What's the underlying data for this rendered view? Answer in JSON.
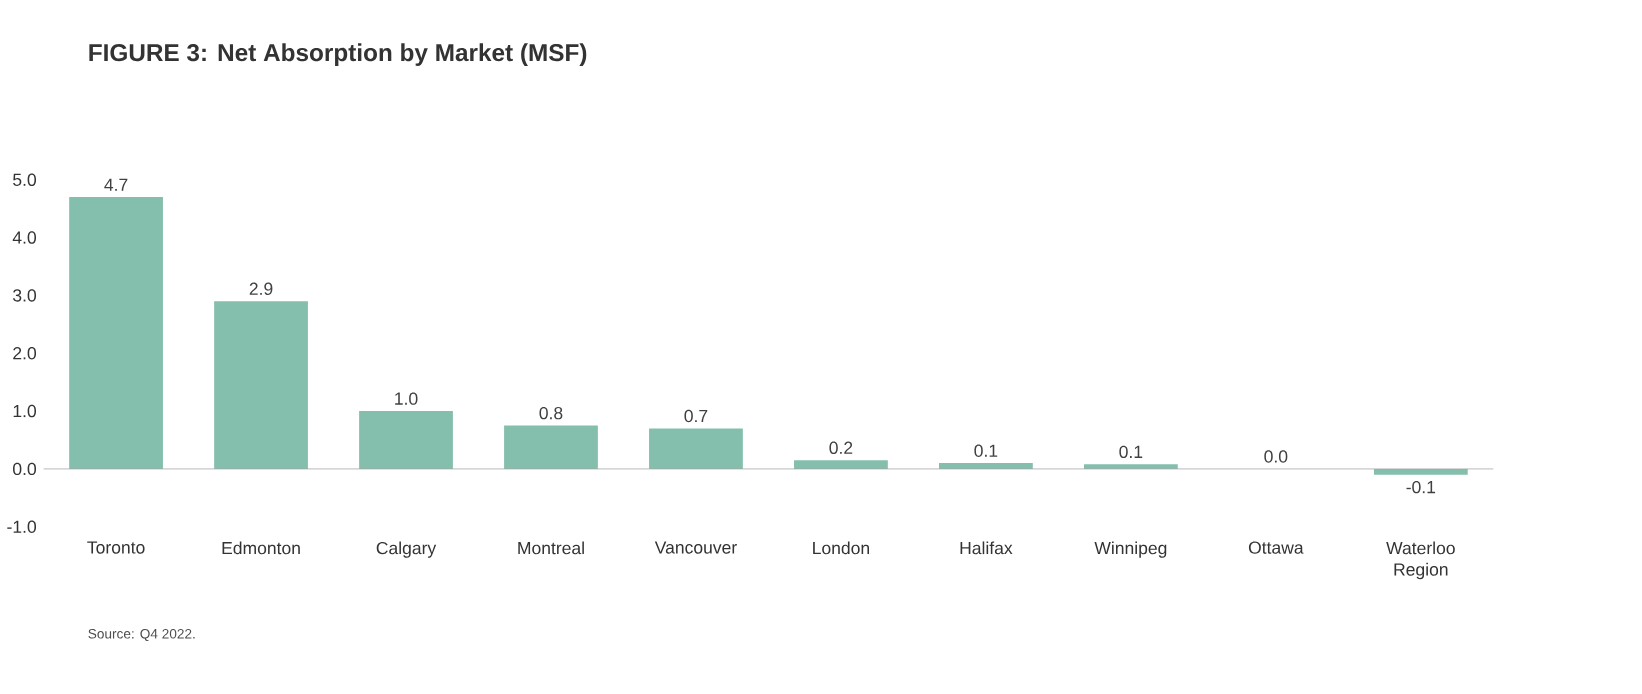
{
  "chart_data": {
    "type": "bar",
    "title": "FIGURE 3: Net Absorption by Market (MSF)",
    "categories": [
      "Toronto",
      "Edmonton",
      "Calgary",
      "Montreal",
      "Vancouver",
      "London",
      "Halifax",
      "Winnipeg",
      "Ottawa",
      "Waterloo Region"
    ],
    "values": [
      4.7,
      2.9,
      1.0,
      0.75,
      0.7,
      0.15,
      0.1,
      0.08,
      0.0,
      -0.1
    ],
    "value_labels": [
      "4.7",
      "2.9",
      "1.0",
      "0.8",
      "0.7",
      "0.2",
      "0.1",
      "0.1",
      "0.0",
      "-0.1"
    ],
    "color": "#84bfae",
    "ylim": [
      -1,
      5
    ],
    "yticks": [
      {
        "value": -1,
        "label": "-1.0"
      },
      {
        "value": 0,
        "label": "0.0"
      },
      {
        "value": 1,
        "label": "1.0"
      },
      {
        "value": 2,
        "label": "2.0"
      },
      {
        "value": 3,
        "label": "3.0"
      },
      {
        "value": 4,
        "label": "4.0"
      },
      {
        "value": 5,
        "label": "5.0"
      }
    ],
    "annotations": [
      "Source: Q4 2022."
    ]
  }
}
